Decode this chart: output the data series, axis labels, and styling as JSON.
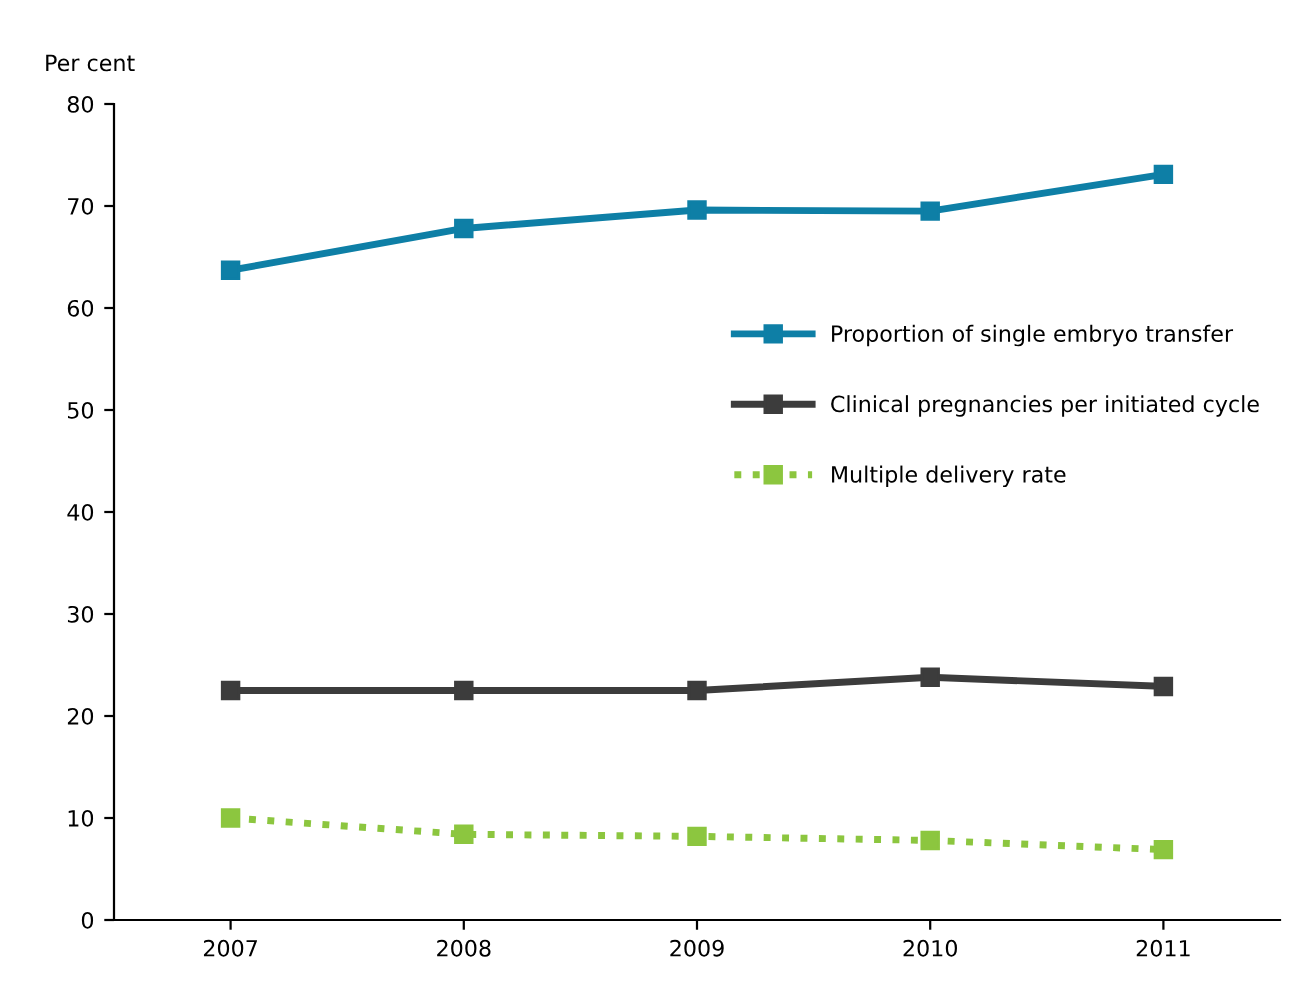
{
  "chart_data": {
    "type": "line",
    "ylabel": "Per cent",
    "categories": [
      "2007",
      "2008",
      "2009",
      "2010",
      "2011"
    ],
    "series": [
      {
        "name": "Proportion of single embryo transfer",
        "color": "#0e7fa6",
        "values": [
          63.7,
          67.8,
          69.6,
          69.5,
          73.1
        ],
        "line_style": "solid"
      },
      {
        "name": "Clinical pregnancies per initiated cycle",
        "color": "#3c3c3c",
        "values": [
          22.5,
          22.5,
          22.5,
          23.8,
          22.9
        ],
        "line_style": "solid"
      },
      {
        "name": "Multiple delivery rate",
        "color": "#8cc63f",
        "values": [
          10.0,
          8.4,
          8.2,
          7.8,
          6.9
        ],
        "line_style": "dotted"
      }
    ],
    "marker": "square",
    "ylim": [
      0,
      80
    ],
    "yticks": [
      0,
      10,
      20,
      30,
      40,
      50,
      60,
      70,
      80
    ],
    "grid": false,
    "legend": "right"
  }
}
